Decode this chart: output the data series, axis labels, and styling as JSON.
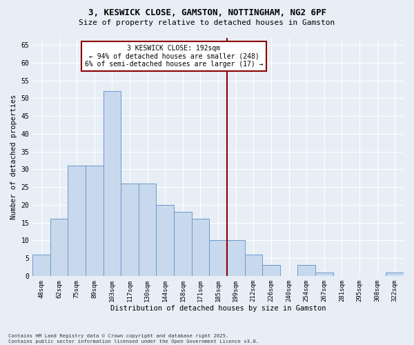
{
  "title_line1": "3, KESWICK CLOSE, GAMSTON, NOTTINGHAM, NG2 6PF",
  "title_line2": "Size of property relative to detached houses in Gamston",
  "xlabel": "Distribution of detached houses by size in Gamston",
  "ylabel": "Number of detached properties",
  "bin_labels": [
    "48sqm",
    "62sqm",
    "75sqm",
    "89sqm",
    "103sqm",
    "117sqm",
    "130sqm",
    "144sqm",
    "158sqm",
    "171sqm",
    "185sqm",
    "199sqm",
    "212sqm",
    "226sqm",
    "240sqm",
    "254sqm",
    "267sqm",
    "281sqm",
    "295sqm",
    "308sqm",
    "322sqm"
  ],
  "bar_values": [
    6,
    16,
    31,
    31,
    52,
    26,
    26,
    20,
    18,
    16,
    10,
    10,
    6,
    3,
    0,
    3,
    1,
    0,
    0,
    0,
    1
  ],
  "bar_color": "#c9d9ed",
  "bar_edge_color": "#6699cc",
  "annotation_text_line1": "3 KESWICK CLOSE: 192sqm",
  "annotation_text_line2": "← 94% of detached houses are smaller (248)",
  "annotation_text_line3": "6% of semi-detached houses are larger (17) →",
  "vline_x_index": 10.5,
  "ylim": [
    0,
    67
  ],
  "yticks": [
    0,
    5,
    10,
    15,
    20,
    25,
    30,
    35,
    40,
    45,
    50,
    55,
    60,
    65
  ],
  "bg_color": "#e8eef5",
  "plot_bg_color": "#e8eef5",
  "grid_color": "#ffffff",
  "footer_line1": "Contains HM Land Registry data © Crown copyright and database right 2025.",
  "footer_line2": "Contains public sector information licensed under the Open Government Licence v3.0."
}
